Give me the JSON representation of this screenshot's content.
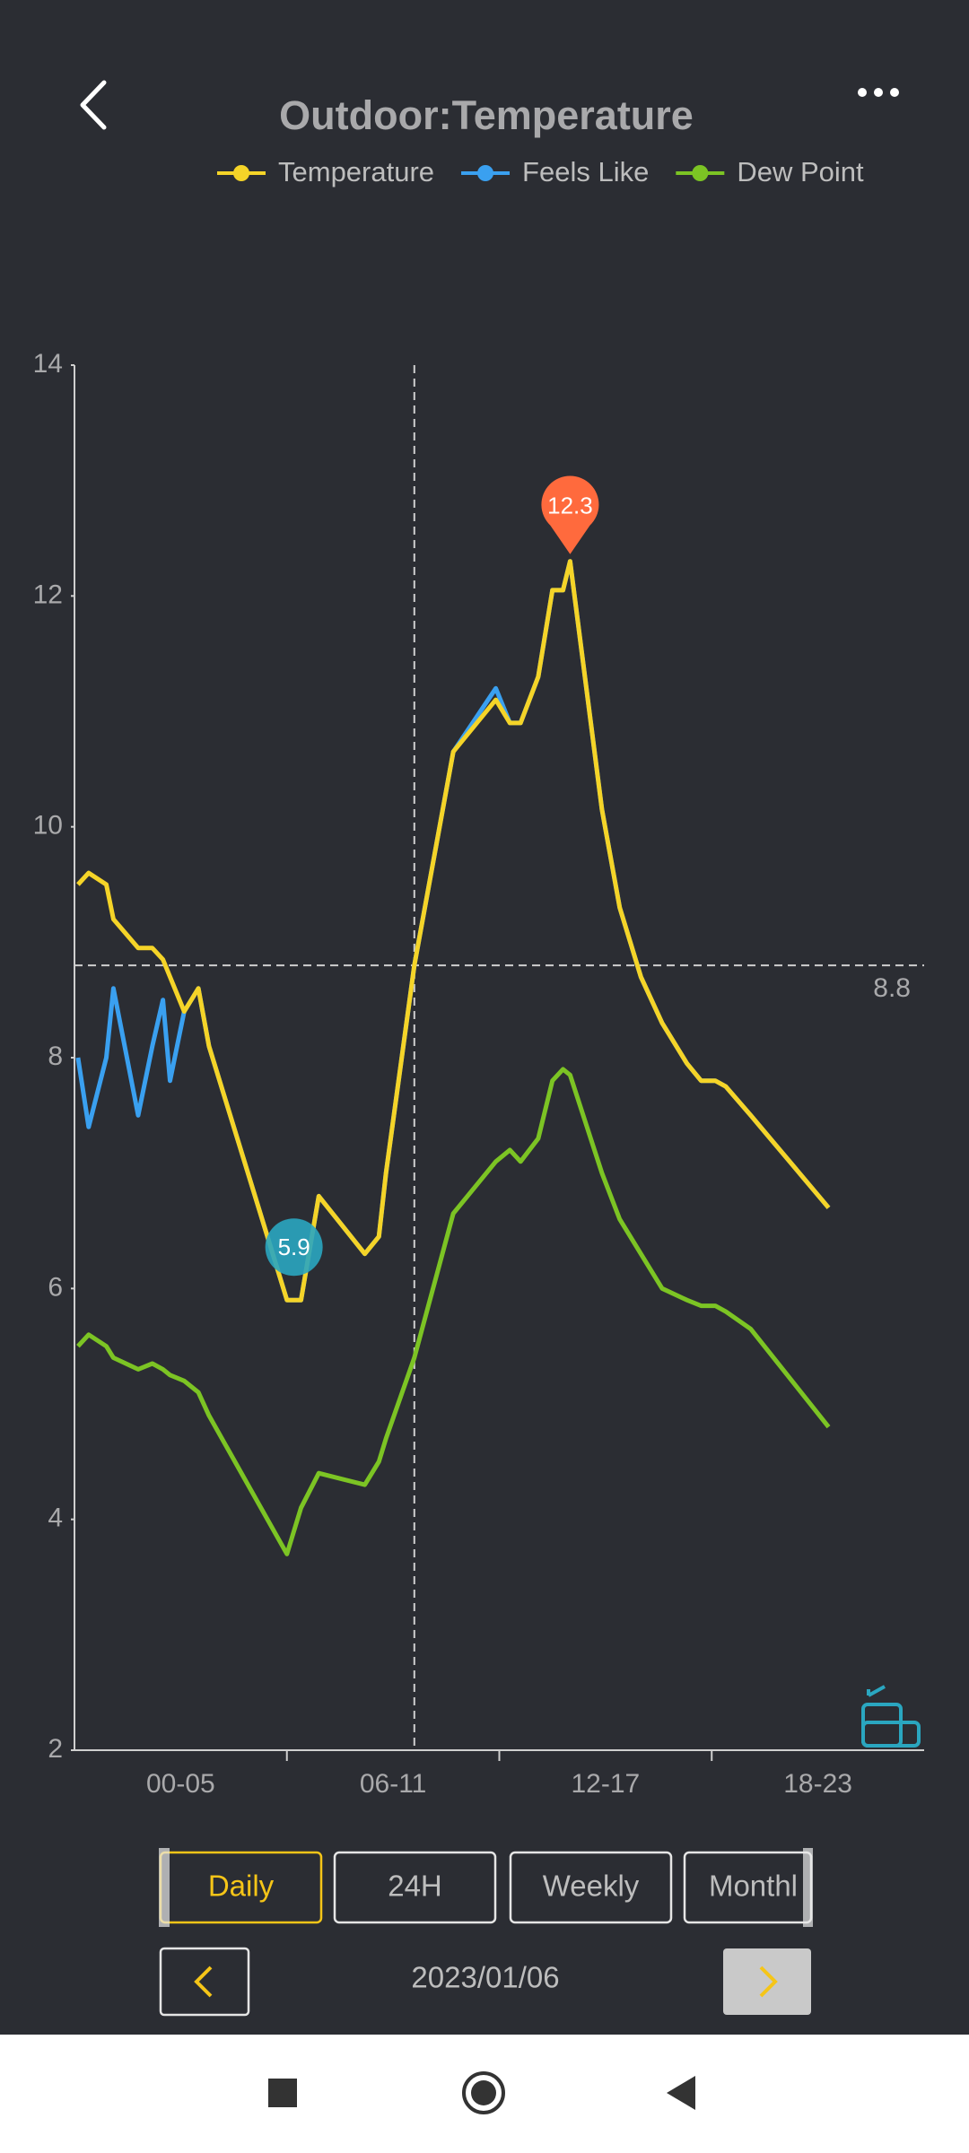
{
  "chart_data": {
    "type": "line",
    "title": "Outdoor:Temperature",
    "categories": [
      "00-05",
      "06-11",
      "12-17",
      "18-23"
    ],
    "xlim": [
      0,
      24
    ],
    "x": [
      0.1,
      0.4,
      0.9,
      1.1,
      1.8,
      2.2,
      2.5,
      2.7,
      3.1,
      3.5,
      3.8,
      6.0,
      6.4,
      6.9,
      8.2,
      8.6,
      8.8,
      9.6,
      10.7,
      11.9,
      12.3,
      12.6,
      13.1,
      13.5,
      13.8,
      14.0,
      14.9,
      15.4,
      16.0,
      16.6,
      17.3,
      17.7,
      18.1,
      18.4,
      19.1,
      21.3
    ],
    "series": [
      {
        "name": "Dew Point",
        "color": "#7cc424",
        "values": [
          5.5,
          5.6,
          5.5,
          5.4,
          5.3,
          5.35,
          5.3,
          5.25,
          5.2,
          5.1,
          4.9,
          3.7,
          4.1,
          4.4,
          4.3,
          4.5,
          4.7,
          5.4,
          6.65,
          7.1,
          7.2,
          7.1,
          7.3,
          7.8,
          7.9,
          7.85,
          7.0,
          6.6,
          6.3,
          6.0,
          5.9,
          5.85,
          5.85,
          5.8,
          5.65,
          4.8
        ]
      },
      {
        "name": "Feels Like",
        "color": "#3aa0f0",
        "values": [
          8.0,
          7.4,
          8.0,
          8.6,
          7.5,
          8.1,
          8.5,
          7.8,
          8.4,
          8.6,
          8.1,
          5.9,
          5.9,
          6.8,
          6.3,
          6.45,
          7.0,
          8.8,
          10.65,
          11.2,
          10.9,
          10.9,
          11.3,
          12.05,
          12.05,
          12.3,
          10.15,
          9.3,
          8.7,
          8.3,
          7.95,
          7.8,
          7.8,
          7.75,
          7.5,
          6.7
        ]
      },
      {
        "name": "Temperature",
        "color": "#f5d428",
        "values": [
          9.5,
          9.6,
          9.5,
          9.2,
          8.95,
          8.95,
          8.85,
          8.7,
          8.4,
          8.6,
          8.1,
          5.9,
          5.9,
          6.8,
          6.3,
          6.45,
          7.0,
          8.8,
          10.65,
          11.1,
          10.9,
          10.9,
          11.3,
          12.05,
          12.05,
          12.3,
          10.15,
          9.3,
          8.7,
          8.3,
          7.95,
          7.8,
          7.8,
          7.75,
          7.5,
          6.7
        ]
      }
    ],
    "legend_order": [
      2,
      1,
      0
    ],
    "ylim": [
      2,
      14
    ],
    "yticks": [
      2,
      4,
      6,
      8,
      10,
      12,
      14
    ],
    "reference_line": 8.8,
    "crosshair_x": 9.6,
    "max_marker": {
      "x": 14.0,
      "value": 12.3,
      "color": "#ff6a3d"
    },
    "min_marker": {
      "x": 6.2,
      "value": 5.9,
      "color": "#2aa6c0"
    }
  },
  "controls": {
    "tabs": [
      "Daily",
      "24H",
      "Weekly",
      "Monthl"
    ],
    "date": "2023/01/06"
  }
}
